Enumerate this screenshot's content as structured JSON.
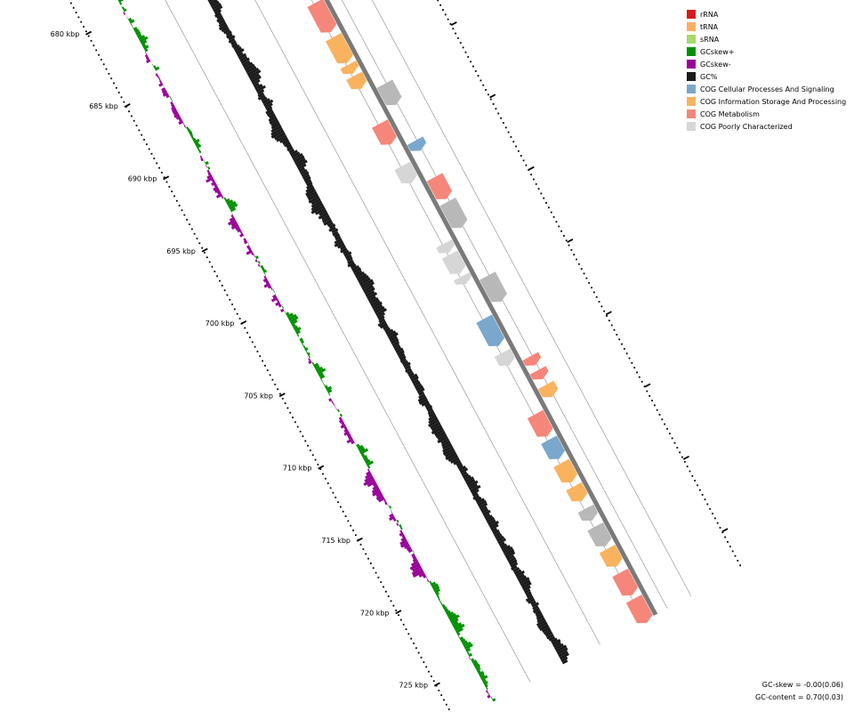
{
  "legend": [
    {
      "label": "rRNA",
      "color": "#d7191c"
    },
    {
      "label": "tRNA",
      "color": "#fdae61"
    },
    {
      "label": "sRNA",
      "color": "#a6d96a"
    },
    {
      "label": "GCskew+",
      "color": "#009100"
    },
    {
      "label": "GCskew-",
      "color": "#990099"
    },
    {
      "label": "GC%",
      "color": "#1a1a1a"
    },
    {
      "label": "COG Cellular Processes And Signaling",
      "color": "#7ba7cc"
    },
    {
      "label": "COG Information Storage And Processing",
      "color": "#f9b25e"
    },
    {
      "label": "COG Metabolism",
      "color": "#f5867a"
    },
    {
      "label": "COG Poorly Characterized",
      "color": "#d6d6d6"
    }
  ],
  "stats": {
    "gc_skew": "GC-skew = -0.00(0.06)",
    "gc_content": "GC-content = 0.70(0.03)"
  },
  "chart_data": {
    "type": "circular-genome-map-segment",
    "axis_unit": "kbp",
    "tick_labels": [
      "680 kbp",
      "685 kbp",
      "690 kbp",
      "695 kbp",
      "700 kbp",
      "705 kbp",
      "710 kbp",
      "715 kbp",
      "720 kbp",
      "725 kbp"
    ],
    "tick_values_kbp": [
      680,
      685,
      690,
      695,
      700,
      705,
      710,
      715,
      720,
      725
    ],
    "gc_skew_mean": -0.0,
    "gc_content_mean": 0.7
  }
}
